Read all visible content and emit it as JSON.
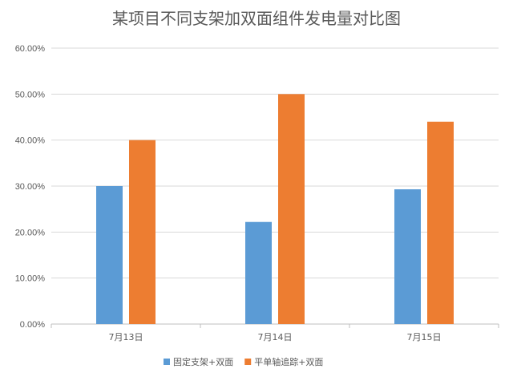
{
  "chart_data": {
    "type": "bar",
    "title": "某项目不同支架加双面组件发电量对比图",
    "xlabel": "",
    "ylabel": "",
    "categories": [
      "7月13日",
      "7月14日",
      "7月15日"
    ],
    "series": [
      {
        "name": "固定支架+双面",
        "color": "#5B9BD5",
        "values": [
          0.3,
          0.222,
          0.293
        ]
      },
      {
        "name": "平单轴追踪+双面",
        "color": "#ED7D31",
        "values": [
          0.4,
          0.5,
          0.44
        ]
      }
    ],
    "ylim": [
      0,
      0.6
    ],
    "yticks": [
      "0.00%",
      "10.00%",
      "20.00%",
      "30.00%",
      "40.00%",
      "50.00%",
      "60.00%"
    ],
    "grid": true,
    "legend_position": "bottom"
  }
}
